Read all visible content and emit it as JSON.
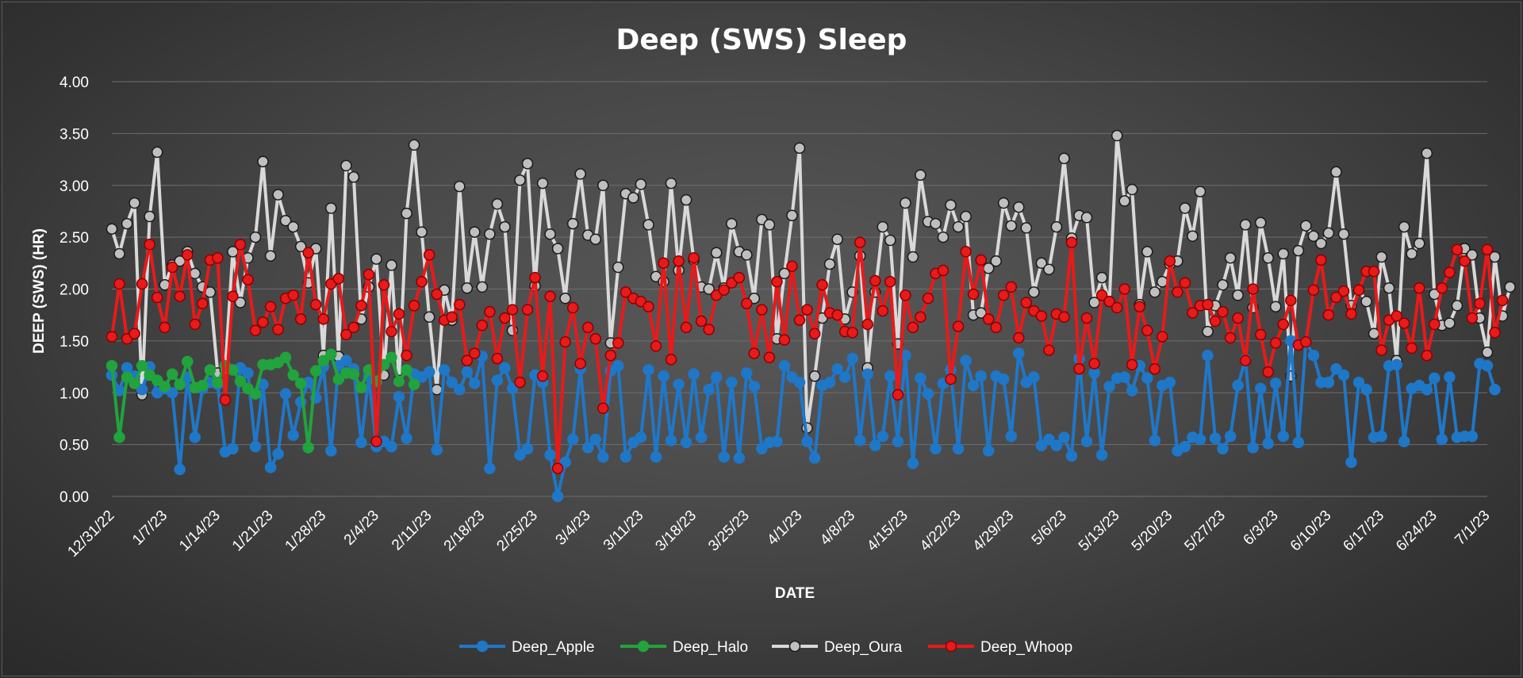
{
  "chart_data": {
    "type": "line",
    "title": "Deep (SWS) Sleep",
    "xlabel": "DATE",
    "ylabel": "DEEP (SWS) (HR)",
    "ylim": [
      0,
      4
    ],
    "yticks": [
      "0.00",
      "0.50",
      "1.00",
      "1.50",
      "2.00",
      "2.50",
      "3.00",
      "3.50",
      "4.00"
    ],
    "x_start": "2022-12-31",
    "x_end": "2023-07-01",
    "xticks": [
      "12/31/22",
      "1/7/23",
      "1/14/23",
      "1/21/23",
      "1/28/23",
      "2/4/23",
      "2/11/23",
      "2/18/23",
      "2/25/23",
      "3/4/23",
      "3/11/23",
      "3/18/23",
      "3/25/23",
      "4/1/23",
      "4/8/23",
      "4/15/23",
      "4/22/23",
      "4/29/23",
      "5/6/23",
      "5/13/23",
      "5/20/23",
      "5/27/23",
      "6/3/23",
      "6/10/23",
      "6/17/23",
      "6/24/23",
      "7/1/23"
    ],
    "grid": true,
    "legend_position": "bottom",
    "series": [
      {
        "name": "Deep_Oura",
        "color": "#d9d9d9",
        "marker_fill": "#bfbfbf",
        "marker_stroke": "#1a1a1a",
        "x_first": "2022-12-31",
        "values": [
          2.58,
          2.34,
          2.63,
          2.83,
          0.98,
          2.7,
          3.32,
          2.04,
          2.23,
          2.27,
          2.36,
          2.15,
          2.02,
          1.97,
          1.19,
          1.22,
          2.36,
          1.87,
          2.3,
          2.5,
          3.23,
          2.32,
          2.91,
          2.66,
          2.6,
          2.41,
          2.06,
          2.39,
          1.36,
          2.78,
          1.35,
          3.19,
          3.08,
          1.71,
          2.02,
          2.29,
          1.17,
          2.23,
          1.12,
          2.73,
          3.39,
          2.55,
          1.73,
          1.03,
          1.99,
          1.7,
          2.99,
          2.01,
          2.55,
          2.02,
          2.53,
          2.82,
          2.6,
          1.6,
          3.05,
          3.21,
          2.03,
          3.02,
          2.53,
          2.39,
          1.91,
          2.63,
          3.11,
          2.52,
          2.48,
          3.0,
          1.48,
          2.21,
          2.92,
          2.88,
          3.01,
          2.62,
          2.12,
          2.07,
          3.02,
          2.18,
          2.86,
          2.28,
          2.02,
          2.0,
          2.35,
          2.01,
          2.63,
          2.36,
          2.33,
          1.91,
          2.67,
          2.62,
          1.52,
          2.15,
          2.71,
          3.36,
          0.66,
          1.16,
          1.72,
          2.24,
          2.48,
          1.71,
          1.97,
          2.32,
          1.24,
          1.97,
          2.6,
          2.47,
          1.47,
          2.83,
          2.31,
          3.1,
          2.65,
          2.63,
          2.5,
          2.81,
          2.6,
          2.7,
          1.75,
          1.77,
          2.2,
          2.27,
          2.83,
          2.61,
          2.79,
          2.59,
          1.97,
          2.25,
          2.19,
          2.6,
          3.26,
          2.49,
          2.71,
          2.69,
          1.87,
          2.11,
          1.88,
          3.48,
          2.85,
          2.96,
          1.85,
          2.36,
          1.97,
          2.07,
          2.24,
          2.27,
          2.78,
          2.51,
          2.94,
          1.59,
          1.84,
          2.04,
          2.3,
          1.94,
          2.62,
          1.82,
          2.64,
          2.3,
          1.83,
          2.34,
          1.16,
          2.37,
          2.61,
          2.51,
          2.44,
          2.54,
          3.13,
          2.53,
          1.84,
          1.99,
          1.88,
          1.57,
          2.31,
          2.01,
          1.31,
          2.6,
          2.34,
          2.44,
          3.31,
          1.95,
          1.65,
          1.67,
          1.84,
          2.39,
          2.33,
          1.72,
          1.39,
          2.31,
          1.74,
          2.02
        ]
      },
      {
        "name": "Deep_Apple",
        "color": "#1f77c8",
        "marker_fill": "#1f77c8",
        "marker_stroke": "#1f77c8",
        "x_first": "2022-12-31",
        "values": [
          1.17,
          1.02,
          1.24,
          1.16,
          1.03,
          1.25,
          1.0,
          1.04,
          1.0,
          0.26,
          1.15,
          0.57,
          1.04,
          1.1,
          1.08,
          0.43,
          0.46,
          1.24,
          1.19,
          0.48,
          1.08,
          0.28,
          0.41,
          0.99,
          0.59,
          0.91,
          1.1,
          0.95,
          1.25,
          0.44,
          1.26,
          1.31,
          1.23,
          0.52,
          1.16,
          0.48,
          0.53,
          0.48,
          0.96,
          0.56,
          1.18,
          1.15,
          1.2,
          0.45,
          1.22,
          1.1,
          1.03,
          1.2,
          1.09,
          1.35,
          0.27,
          1.12,
          1.24,
          1.04,
          0.4,
          0.46,
          1.17,
          1.1,
          0.4,
          0.0,
          0.33,
          0.55,
          1.23,
          0.47,
          0.55,
          0.38,
          1.21,
          1.26,
          0.38,
          0.52,
          0.57,
          1.22,
          0.38,
          1.16,
          0.54,
          1.08,
          0.52,
          1.18,
          0.57,
          1.03,
          1.15,
          0.38,
          1.1,
          0.37,
          1.19,
          1.06,
          0.46,
          0.52,
          0.53,
          1.26,
          1.15,
          1.1,
          0.53,
          0.37,
          1.07,
          1.1,
          1.23,
          1.15,
          1.33,
          0.54,
          1.18,
          0.49,
          0.58,
          1.16,
          0.53,
          1.36,
          0.32,
          1.14,
          0.99,
          0.46,
          1.09,
          1.22,
          0.46,
          1.31,
          1.07,
          1.16,
          0.44,
          1.16,
          1.13,
          0.58,
          1.38,
          1.1,
          1.15,
          0.49,
          0.55,
          0.49,
          0.57,
          0.39,
          1.33,
          0.53,
          1.19,
          0.4,
          1.06,
          1.14,
          1.15,
          1.02,
          1.26,
          1.14,
          0.54,
          1.07,
          1.1,
          0.44,
          0.48,
          0.57,
          0.55,
          1.36,
          0.56,
          0.46,
          0.58,
          1.07,
          1.32,
          0.47,
          1.04,
          0.51,
          1.09,
          0.58,
          1.5,
          0.52,
          1.49,
          1.36,
          1.1,
          1.1,
          1.23,
          1.17,
          0.33,
          1.1,
          1.03,
          0.57,
          0.58,
          1.26,
          1.27,
          0.53,
          1.04,
          1.07,
          1.03,
          1.14,
          0.55,
          1.15,
          0.57,
          0.58,
          0.58,
          1.28,
          1.26,
          1.03
        ]
      },
      {
        "name": "Deep_Halo",
        "color": "#21a33d",
        "marker_fill": "#21a33d",
        "marker_stroke": "#21a33d",
        "x_first": "2022-12-31",
        "values": [
          1.26,
          0.57,
          1.15,
          1.09,
          1.26,
          1.17,
          1.12,
          1.06,
          1.18,
          1.08,
          1.3,
          1.05,
          1.07,
          1.22,
          1.1,
          1.26,
          1.22,
          1.11,
          1.04,
          0.99,
          1.27,
          1.27,
          1.29,
          1.34,
          1.17,
          1.09,
          0.47,
          1.21,
          1.31,
          1.37,
          1.13,
          1.19,
          1.18,
          1.05,
          1.22,
          1.11,
          1.27,
          1.34,
          1.11,
          1.22,
          1.08
        ]
      },
      {
        "name": "Deep_Whoop",
        "color": "#e81a1a",
        "marker_fill": "#e81a1a",
        "marker_stroke": "#8a0000",
        "x_first": "2022-12-31",
        "values": [
          1.54,
          2.05,
          1.52,
          1.57,
          2.05,
          2.43,
          1.92,
          1.63,
          2.21,
          1.93,
          2.33,
          1.66,
          1.86,
          2.28,
          2.3,
          0.93,
          1.93,
          2.43,
          2.09,
          1.6,
          1.68,
          1.83,
          1.61,
          1.91,
          1.94,
          1.71,
          2.35,
          1.85,
          1.71,
          2.05,
          2.1,
          1.56,
          1.63,
          1.84,
          2.14,
          0.53,
          2.04,
          1.59,
          1.76,
          1.36,
          1.84,
          2.07,
          2.33,
          1.95,
          1.7,
          1.73,
          1.85,
          1.31,
          1.38,
          1.65,
          1.78,
          1.33,
          1.72,
          1.8,
          1.1,
          1.8,
          2.11,
          1.16,
          1.93,
          0.27,
          1.49,
          1.82,
          1.28,
          1.63,
          1.52,
          0.85,
          1.36,
          1.48,
          1.97,
          1.91,
          1.88,
          1.83,
          1.45,
          2.25,
          1.32,
          2.27,
          1.63,
          2.3,
          1.69,
          1.61,
          1.94,
          1.99,
          2.06,
          2.11,
          1.86,
          1.38,
          1.8,
          1.34,
          2.07,
          1.51,
          2.22,
          1.7,
          1.8,
          1.57,
          2.04,
          1.77,
          1.75,
          1.59,
          1.58,
          2.45,
          1.66,
          2.08,
          1.79,
          2.07,
          0.98,
          1.94,
          1.63,
          1.73,
          1.91,
          2.15,
          2.18,
          1.13,
          1.64,
          2.36,
          1.95,
          2.28,
          1.71,
          1.63,
          1.94,
          2.02,
          1.53,
          1.87,
          1.79,
          1.74,
          1.41,
          1.76,
          1.73,
          2.45,
          1.23,
          1.72,
          1.28,
          1.94,
          1.88,
          1.82,
          2.0,
          1.27,
          1.83,
          1.6,
          1.23,
          1.54,
          2.27,
          1.97,
          2.06,
          1.77,
          1.84,
          1.85,
          1.69,
          1.78,
          1.53,
          1.72,
          1.31,
          2.0,
          1.56,
          1.2,
          1.48,
          1.66,
          1.89,
          1.46,
          1.49,
          1.99,
          2.28,
          1.75,
          1.92,
          1.98,
          1.76,
          1.99,
          2.17,
          2.17,
          1.41,
          1.7,
          1.74,
          1.67,
          1.43,
          2.01,
          1.36,
          1.66,
          2.01,
          2.16,
          2.38,
          2.27,
          1.72,
          1.86,
          2.38,
          1.58,
          1.89
        ]
      }
    ]
  }
}
